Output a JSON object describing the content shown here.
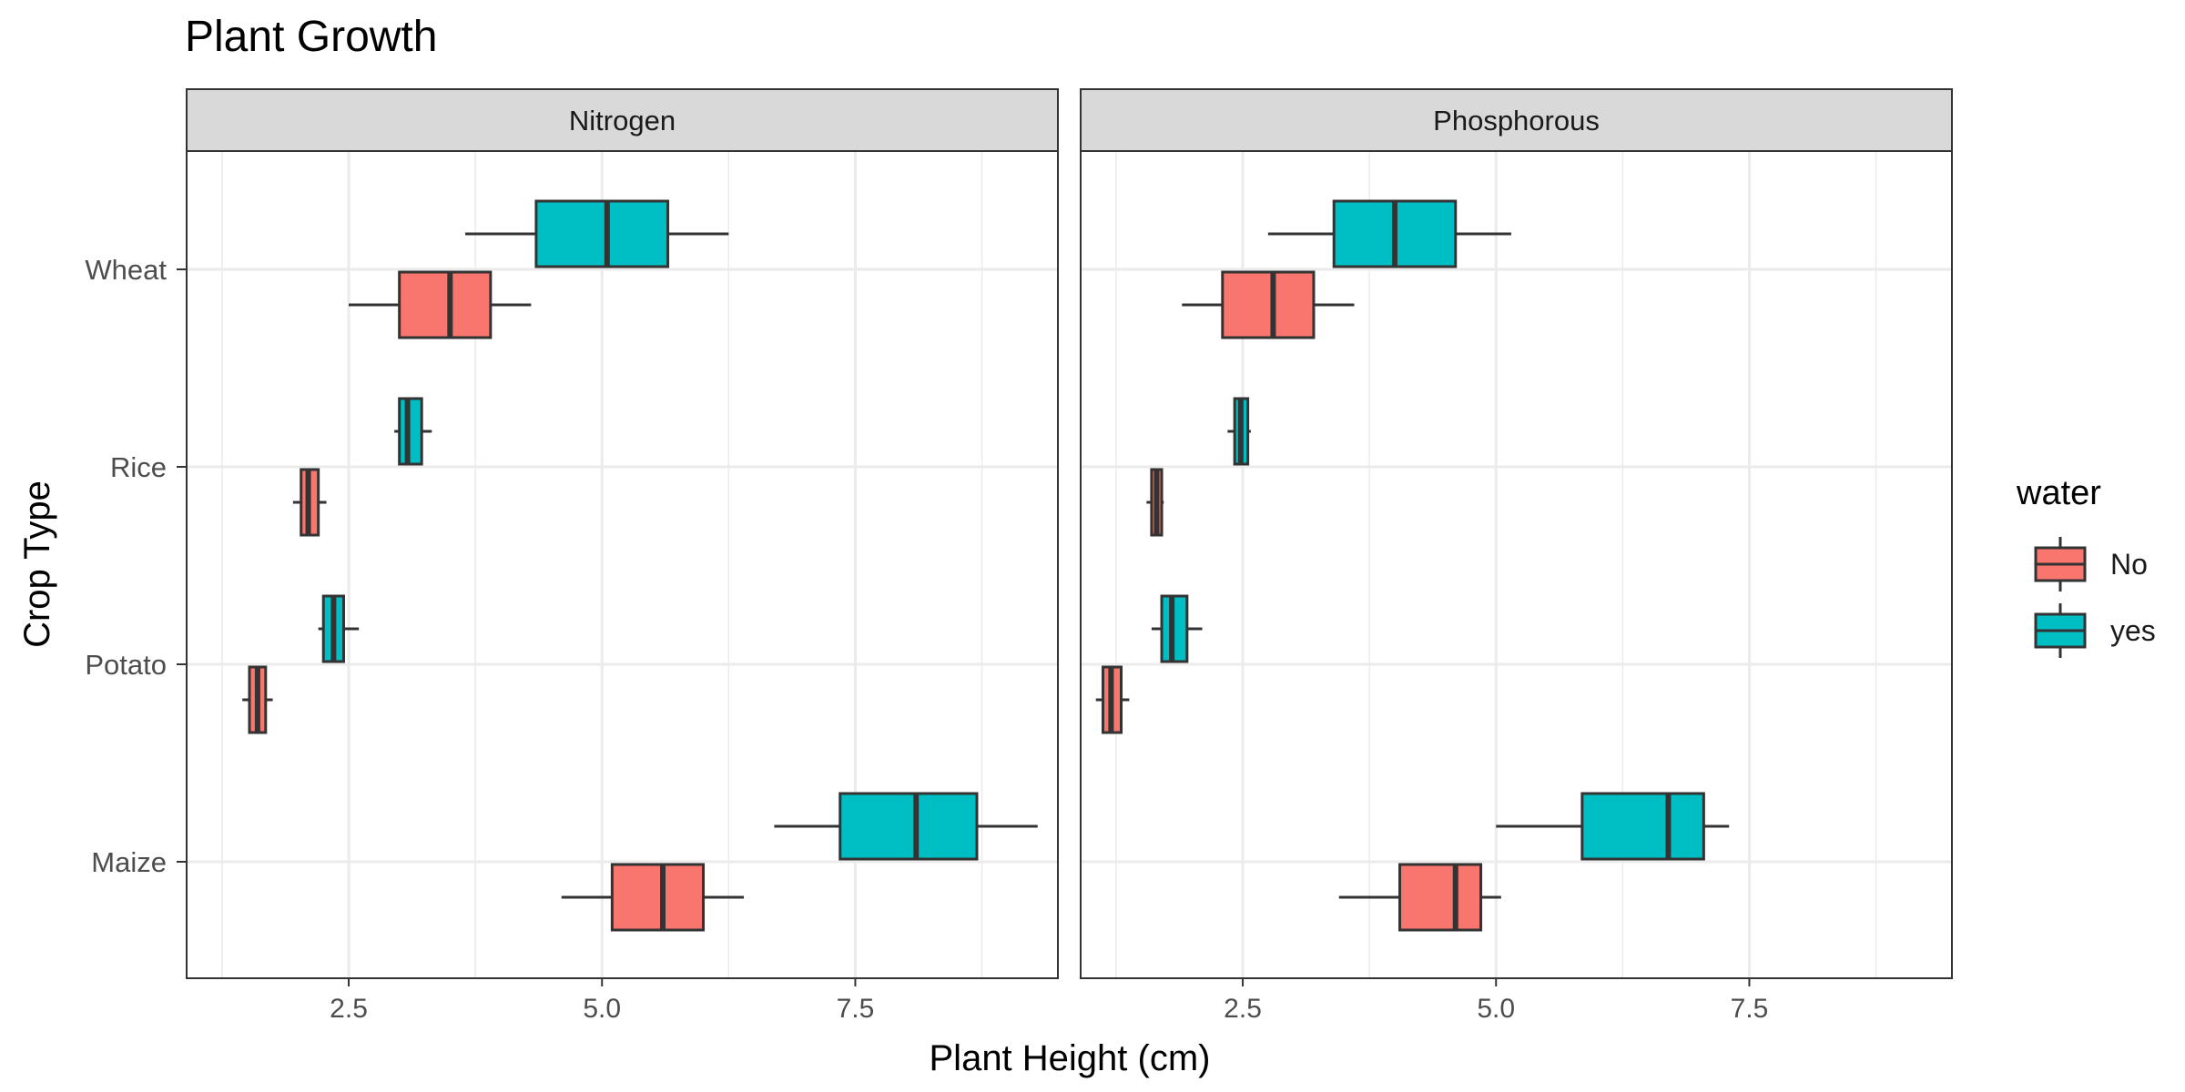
{
  "chart_data": {
    "type": "boxplot",
    "title": "Plant Growth",
    "xlabel": "Plant Height (cm)",
    "ylabel": "Crop Type",
    "xlim": [
      0.9,
      9.5
    ],
    "xticks": [
      2.5,
      5.0,
      7.5
    ],
    "xtick_labels": [
      "2.5",
      "5.0",
      "7.5"
    ],
    "categories": [
      "Wheat",
      "Rice",
      "Potato",
      "Maize"
    ],
    "facets": [
      "Nitrogen",
      "Phosphorous"
    ],
    "legend": {
      "title": "water",
      "position": "right",
      "entries": [
        {
          "name": "No",
          "color": "#F8766D"
        },
        {
          "name": "yes",
          "color": "#00BFC4"
        }
      ]
    },
    "grid": true,
    "series": [
      {
        "name": "No",
        "color": "#F8766D",
        "data": {
          "Nitrogen": {
            "Wheat": {
              "min": 2.5,
              "q1": 3.0,
              "median": 3.5,
              "q3": 3.9,
              "max": 4.3
            },
            "Rice": {
              "min": 1.95,
              "q1": 2.03,
              "median": 2.1,
              "q3": 2.2,
              "max": 2.28
            },
            "Potato": {
              "min": 1.45,
              "q1": 1.52,
              "median": 1.6,
              "q3": 1.68,
              "max": 1.75
            },
            "Maize": {
              "min": 4.6,
              "q1": 5.1,
              "median": 5.6,
              "q3": 6.0,
              "max": 6.4
            }
          },
          "Phosphorous": {
            "Wheat": {
              "min": 1.9,
              "q1": 2.3,
              "median": 2.8,
              "q3": 3.2,
              "max": 3.6
            },
            "Rice": {
              "min": 1.55,
              "q1": 1.6,
              "median": 1.65,
              "q3": 1.7,
              "max": 1.72
            },
            "Potato": {
              "min": 1.05,
              "q1": 1.12,
              "median": 1.2,
              "q3": 1.3,
              "max": 1.38
            },
            "Maize": {
              "min": 3.45,
              "q1": 4.05,
              "median": 4.6,
              "q3": 4.85,
              "max": 5.05
            }
          }
        }
      },
      {
        "name": "yes",
        "color": "#00BFC4",
        "data": {
          "Nitrogen": {
            "Wheat": {
              "min": 3.65,
              "q1": 4.35,
              "median": 5.05,
              "q3": 5.65,
              "max": 6.25
            },
            "Rice": {
              "min": 2.95,
              "q1": 3.0,
              "median": 3.08,
              "q3": 3.22,
              "max": 3.32
            },
            "Potato": {
              "min": 2.2,
              "q1": 2.25,
              "median": 2.35,
              "q3": 2.45,
              "max": 2.6
            },
            "Maize": {
              "min": 6.7,
              "q1": 7.35,
              "median": 8.1,
              "q3": 8.7,
              "max": 9.3
            }
          },
          "Phosphorous": {
            "Wheat": {
              "min": 2.75,
              "q1": 3.4,
              "median": 4.0,
              "q3": 4.6,
              "max": 5.15
            },
            "Rice": {
              "min": 2.35,
              "q1": 2.42,
              "median": 2.48,
              "q3": 2.55,
              "max": 2.58
            },
            "Potato": {
              "min": 1.6,
              "q1": 1.7,
              "median": 1.8,
              "q3": 1.95,
              "max": 2.1
            },
            "Maize": {
              "min": 5.0,
              "q1": 5.85,
              "median": 6.7,
              "q3": 7.05,
              "max": 7.3
            }
          }
        }
      }
    ]
  }
}
